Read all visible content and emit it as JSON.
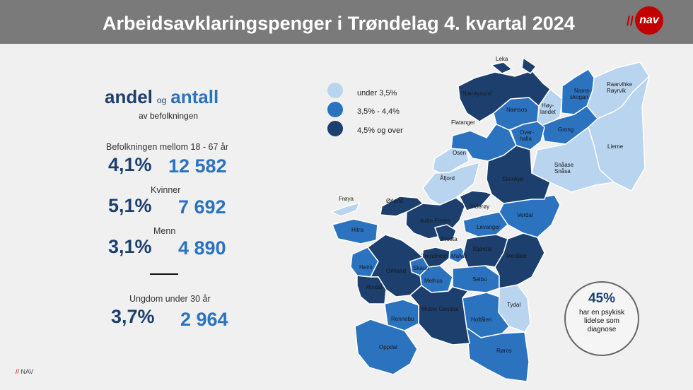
{
  "header": {
    "title": "Arbeidsavklaringspenger i Trøndelag 4. kvartal 2024"
  },
  "logo": {
    "slash": "//",
    "text": "nav"
  },
  "heading": {
    "word1": "andel",
    "connector": "og",
    "word2": "antall",
    "subtitle": "av befolkningen"
  },
  "stats": [
    {
      "label": "Befolkningen mellom 18 - 67 år",
      "pct": "4,1%",
      "count": "12 582"
    },
    {
      "label": "Kvinner",
      "pct": "5,1%",
      "count": "7 692"
    },
    {
      "label": "Menn",
      "pct": "3,1%",
      "count": "4 890"
    },
    {
      "label": "Ungdom under 30 år",
      "pct": "3,7%",
      "count": "2 964"
    }
  ],
  "legend": [
    {
      "label": "under 3,5%",
      "color": "#b8d4ee"
    },
    {
      "label": "3,5% - 4,4%",
      "color": "#2b72bf"
    },
    {
      "label": "4,5% og over",
      "color": "#1c3f6e"
    }
  ],
  "callout": {
    "pct": "45%",
    "text": "har en psykisk lidelse som diagnose"
  },
  "footer": {
    "slash": "//",
    "text": "NAV"
  },
  "map": {
    "labels": {
      "leka": "Leka",
      "naeroysund": "Nærøysund",
      "namsos": "Namsos",
      "hoylandet1": "Høy-",
      "hoylandet2": "landet",
      "namsskogan1": "Nams-",
      "namsskogan2": "skogan",
      "raarvihke1": "Raarvihke",
      "raarvihke2": "Røyrvik",
      "grong": "Grong",
      "overhalla1": "Over-",
      "overhalla2": "halla",
      "flatanger": "Flatanger",
      "osen": "Osen",
      "lierne": "Lierne",
      "snasa1": "Snåase",
      "snasa2": "Snåsa",
      "afjord": "Åfjord",
      "steinkjer": "Steinkjer",
      "froya": "Frøya",
      "orland": "Ørland",
      "inderoy": "Inderøy",
      "indrefosen": "Indre Fosen",
      "verdal": "Verdal",
      "hitra": "Hitra",
      "levanger": "Levanger",
      "frosta": "Frosta",
      "trondheim": "Trondheim",
      "malvik": "Malvik",
      "stjordal": "Stjørdal",
      "meraker": "Meråker",
      "heim": "Heim",
      "orkland": "Orkland",
      "skaun": "Skaun",
      "rindal": "Rindal",
      "melhus": "Melhus",
      "selbu": "Selbu",
      "tydal": "Tydal",
      "rennebu": "Rennebu",
      "midtregauldal": "Midtre Gauldal",
      "holtalen": "Holtålen",
      "oppdal": "Oppdal",
      "roros": "Røros"
    }
  }
}
